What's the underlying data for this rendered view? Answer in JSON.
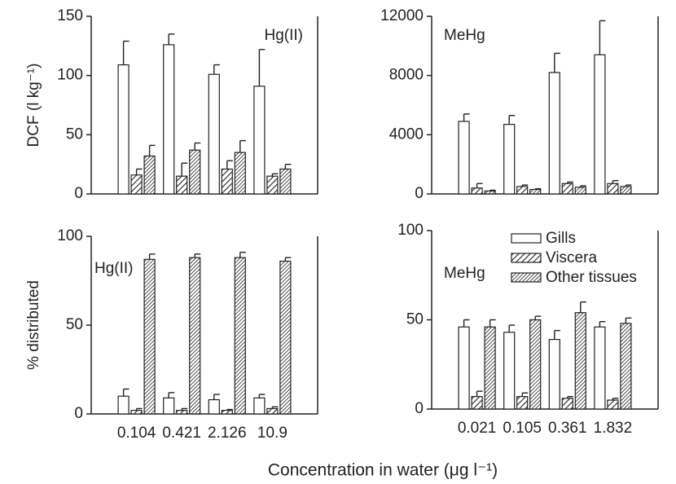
{
  "xlabel": "Concentration in water (μg l⁻¹)",
  "chart_data": [
    {
      "type": "bar",
      "annotation": "Hg(II)",
      "ylabel": "DCF (l kg⁻¹)",
      "categories": [
        null,
        null,
        null,
        null
      ],
      "ylim": [
        0,
        150
      ],
      "yticks": [
        0,
        50,
        100,
        150
      ],
      "series": [
        {
          "name": "Gills",
          "color": "#ffffff",
          "pattern": "none",
          "values": [
            109,
            126,
            101,
            91
          ],
          "errors": [
            20,
            9,
            8,
            31
          ]
        },
        {
          "name": "Viscera",
          "color": "#222222",
          "pattern": "sparse",
          "values": [
            16,
            15,
            21,
            15
          ],
          "errors": [
            5,
            11,
            7,
            2
          ]
        },
        {
          "name": "Other tissues",
          "color": "#222222",
          "pattern": "dense",
          "values": [
            32,
            37,
            35,
            21
          ],
          "errors": [
            9,
            6,
            10,
            4
          ]
        }
      ]
    },
    {
      "type": "bar",
      "annotation": "MeHg",
      "categories": [
        null,
        null,
        null,
        null
      ],
      "ylim": [
        0,
        12000
      ],
      "yticks": [
        0,
        4000,
        8000,
        12000
      ],
      "series": [
        {
          "name": "Gills",
          "color": "#ffffff",
          "pattern": "none",
          "values": [
            4900,
            4700,
            8200,
            9400
          ],
          "errors": [
            500,
            600,
            1300,
            2300
          ]
        },
        {
          "name": "Viscera",
          "color": "#222222",
          "pattern": "sparse",
          "values": [
            400,
            500,
            700,
            700
          ],
          "errors": [
            300,
            100,
            100,
            200
          ]
        },
        {
          "name": "Other tissues",
          "color": "#222222",
          "pattern": "dense",
          "values": [
            200,
            300,
            450,
            500
          ],
          "errors": [
            50,
            50,
            100,
            100
          ]
        }
      ]
    },
    {
      "type": "bar",
      "annotation": "Hg(II)",
      "ylabel": "% distributed",
      "categories": [
        "0.104",
        "0.421",
        "2.126",
        "10.9"
      ],
      "ylim": [
        0,
        100
      ],
      "yticks": [
        0,
        50,
        100
      ],
      "series": [
        {
          "name": "Gills",
          "color": "#ffffff",
          "pattern": "none",
          "values": [
            10,
            9,
            8,
            9
          ],
          "errors": [
            4,
            3,
            3,
            2
          ]
        },
        {
          "name": "Viscera",
          "color": "#222222",
          "pattern": "sparse",
          "values": [
            2,
            2,
            2,
            3
          ],
          "errors": [
            1,
            1,
            0.5,
            1
          ]
        },
        {
          "name": "Other tissues",
          "color": "#222222",
          "pattern": "dense",
          "values": [
            87,
            88,
            88,
            86
          ],
          "errors": [
            3,
            2,
            3,
            2
          ]
        }
      ]
    },
    {
      "type": "bar",
      "annotation": "MeHg",
      "legend": "upper right",
      "categories": [
        "0.021",
        "0.105",
        "0.361",
        "1.832"
      ],
      "ylim": [
        0,
        100
      ],
      "yticks": [
        0,
        50,
        100
      ],
      "series": [
        {
          "name": "Gills",
          "color": "#ffffff",
          "pattern": "none",
          "values": [
            46,
            43,
            39,
            46
          ],
          "errors": [
            4,
            4,
            5,
            3
          ]
        },
        {
          "name": "Viscera",
          "color": "#222222",
          "pattern": "sparse",
          "values": [
            7,
            7,
            6,
            5
          ],
          "errors": [
            3,
            2,
            1,
            1
          ]
        },
        {
          "name": "Other tissues",
          "color": "#222222",
          "pattern": "dense",
          "values": [
            46,
            50,
            54,
            48
          ],
          "errors": [
            4,
            2,
            6,
            3
          ]
        }
      ]
    }
  ]
}
